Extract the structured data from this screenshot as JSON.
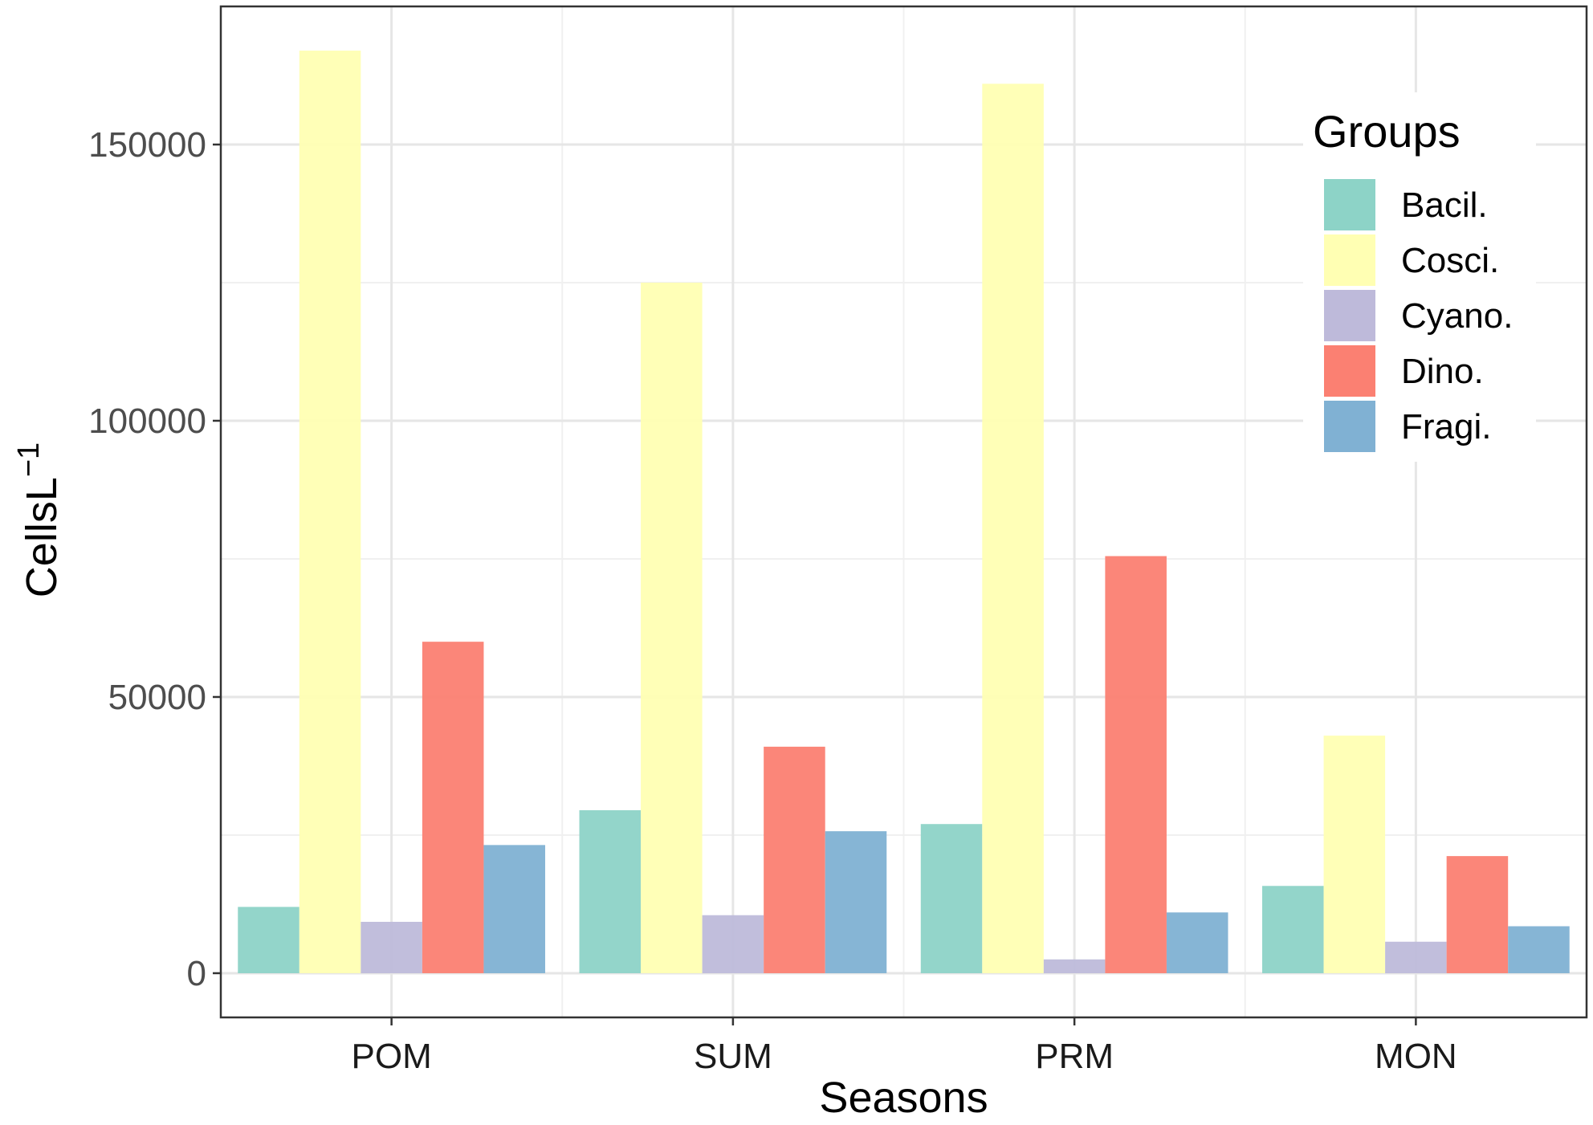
{
  "chart_data": {
    "type": "bar",
    "xlabel": "Seasons",
    "ylabel": "CellsL",
    "ylabel_superscript": "−1",
    "categories": [
      "POM",
      "SUM",
      "PRM",
      "MON"
    ],
    "ylim": [
      -8000,
      175000
    ],
    "yticks": [
      0,
      50000,
      100000,
      150000
    ],
    "ytick_labels": [
      "0",
      "50000",
      "100000",
      "150000"
    ],
    "grid": true,
    "legend": {
      "title": "Groups",
      "placement": "top-right (inside plot)"
    },
    "series": [
      {
        "name": "Bacil.",
        "color": "#8DD3C7",
        "values": [
          12000,
          29500,
          27000,
          15800
        ]
      },
      {
        "name": "Cosci.",
        "color": "#FFFFB3",
        "values": [
          167000,
          125000,
          161000,
          43000
        ]
      },
      {
        "name": "Cyano.",
        "color": "#BEBADA",
        "values": [
          9300,
          10500,
          2500,
          5700
        ]
      },
      {
        "name": "Dino.",
        "color": "#FB8072",
        "values": [
          60000,
          41000,
          75500,
          21200
        ]
      },
      {
        "name": "Fragi.",
        "color": "#80B1D3",
        "values": [
          23200,
          25700,
          11000,
          8500
        ]
      }
    ]
  }
}
